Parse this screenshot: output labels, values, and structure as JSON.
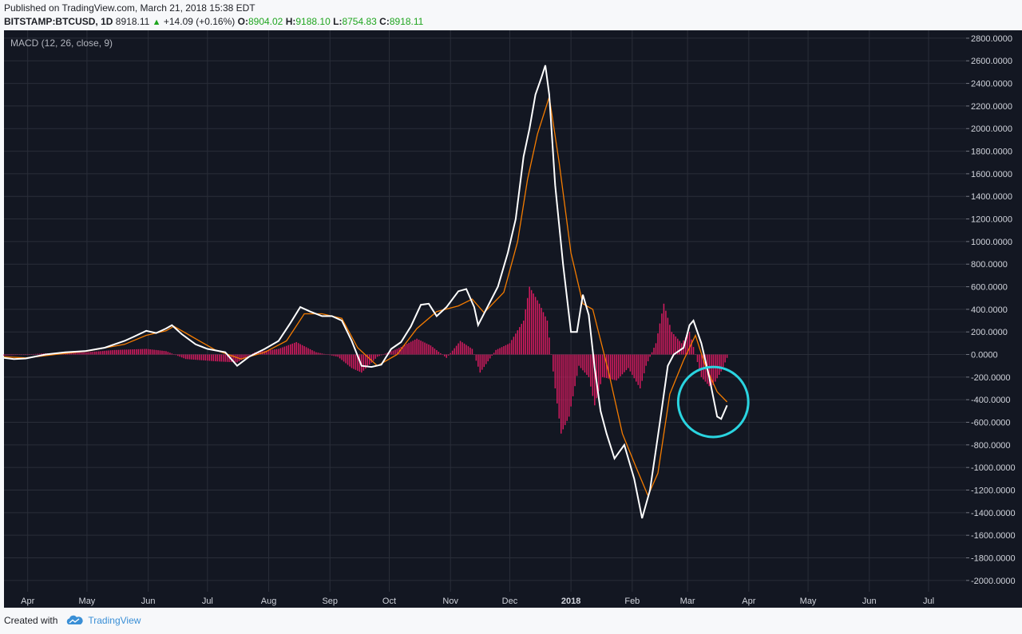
{
  "header": {
    "published": "Published on TradingView.com, March 21, 2018 15:38 EDT",
    "symbol": "BITSTAMP:BTCUSD, 1D",
    "last": "8918.11",
    "change": "+14.09 (+0.16%)",
    "open_label": "O:",
    "open": "8904.02",
    "high_label": "H:",
    "high": "9188.10",
    "low_label": "L:",
    "low": "8754.83",
    "close_label": "C:",
    "close": "8918.11"
  },
  "footer": {
    "created_with": "Created with",
    "brand": "TradingView",
    "logo_icon": "tradingview-cloud-icon"
  },
  "colors": {
    "background": "#131722",
    "grid": "#2a2e39",
    "macd": "#ffffff",
    "signal": "#f57c00",
    "histogram": "#d81b60",
    "annotation": "#2ad4e0",
    "up": "#1fa51f"
  },
  "chart_data": {
    "type": "line",
    "indicator_label": "MACD (12, 26, close, 9)",
    "x_ticks": [
      "Apr",
      "May",
      "Jun",
      "Jul",
      "Aug",
      "Sep",
      "Oct",
      "Nov",
      "Dec",
      "2018",
      "Feb",
      "Mar",
      "Apr",
      "May",
      "Jun",
      "Jul"
    ],
    "x_tick_dates": [
      "2017-04-01",
      "2017-05-01",
      "2017-06-01",
      "2017-07-01",
      "2017-08-01",
      "2017-09-01",
      "2017-10-01",
      "2017-11-01",
      "2017-12-01",
      "2018-01-01",
      "2018-02-01",
      "2018-03-01",
      "2018-04-01",
      "2018-05-01",
      "2018-06-01",
      "2018-07-01"
    ],
    "x_range": [
      "2017-03-20",
      "2018-07-20"
    ],
    "y_ticks": [
      2800,
      2600,
      2400,
      2200,
      2000,
      1800,
      1600,
      1400,
      1200,
      1000,
      800,
      600,
      400,
      200,
      0,
      -200,
      -400,
      -600,
      -800,
      -1000,
      -1200,
      -1400,
      -1600,
      -1800,
      -2000
    ],
    "y_range": [
      -2100,
      2870
    ],
    "y_tick_format": "4 decimals",
    "grid": true,
    "annotation": {
      "type": "circle",
      "center_date": "2018-03-14",
      "center_value": -420,
      "radius_value": 310
    },
    "series": [
      {
        "key": "macd",
        "points": [
          [
            "2017-03-20",
            -30
          ],
          [
            "2017-03-25",
            -40
          ],
          [
            "2017-03-31",
            -35
          ],
          [
            "2017-04-10",
            0
          ],
          [
            "2017-04-20",
            20
          ],
          [
            "2017-04-30",
            30
          ],
          [
            "2017-05-10",
            60
          ],
          [
            "2017-05-20",
            120
          ],
          [
            "2017-05-25",
            160
          ],
          [
            "2017-05-31",
            210
          ],
          [
            "2017-06-05",
            190
          ],
          [
            "2017-06-10",
            230
          ],
          [
            "2017-06-13",
            260
          ],
          [
            "2017-06-18",
            180
          ],
          [
            "2017-06-25",
            90
          ],
          [
            "2017-07-01",
            50
          ],
          [
            "2017-07-10",
            20
          ],
          [
            "2017-07-16",
            -100
          ],
          [
            "2017-07-22",
            -20
          ],
          [
            "2017-07-30",
            50
          ],
          [
            "2017-08-06",
            120
          ],
          [
            "2017-08-12",
            280
          ],
          [
            "2017-08-17",
            420
          ],
          [
            "2017-08-22",
            380
          ],
          [
            "2017-08-28",
            340
          ],
          [
            "2017-09-02",
            340
          ],
          [
            "2017-09-07",
            300
          ],
          [
            "2017-09-12",
            120
          ],
          [
            "2017-09-17",
            -100
          ],
          [
            "2017-09-22",
            -110
          ],
          [
            "2017-09-27",
            -90
          ],
          [
            "2017-10-02",
            50
          ],
          [
            "2017-10-07",
            110
          ],
          [
            "2017-10-12",
            250
          ],
          [
            "2017-10-17",
            440
          ],
          [
            "2017-10-21",
            450
          ],
          [
            "2017-10-25",
            340
          ],
          [
            "2017-10-30",
            420
          ],
          [
            "2017-11-05",
            560
          ],
          [
            "2017-11-09",
            580
          ],
          [
            "2017-11-13",
            420
          ],
          [
            "2017-11-15",
            260
          ],
          [
            "2017-11-20",
            430
          ],
          [
            "2017-11-25",
            600
          ],
          [
            "2017-11-30",
            900
          ],
          [
            "2017-12-04",
            1200
          ],
          [
            "2017-12-08",
            1750
          ],
          [
            "2017-12-11",
            2000
          ],
          [
            "2017-12-14",
            2300
          ],
          [
            "2017-12-17",
            2450
          ],
          [
            "2017-12-19",
            2560
          ],
          [
            "2017-12-21",
            2300
          ],
          [
            "2017-12-24",
            1500
          ],
          [
            "2017-12-28",
            800
          ],
          [
            "2018-01-01",
            200
          ],
          [
            "2018-01-04",
            200
          ],
          [
            "2018-01-07",
            530
          ],
          [
            "2018-01-10",
            350
          ],
          [
            "2018-01-13",
            -120
          ],
          [
            "2018-01-16",
            -500
          ],
          [
            "2018-01-19",
            -700
          ],
          [
            "2018-01-23",
            -920
          ],
          [
            "2018-01-28",
            -800
          ],
          [
            "2018-02-02",
            -1100
          ],
          [
            "2018-02-06",
            -1450
          ],
          [
            "2018-02-10",
            -1200
          ],
          [
            "2018-02-15",
            -600
          ],
          [
            "2018-02-19",
            -100
          ],
          [
            "2018-02-22",
            0
          ],
          [
            "2018-02-27",
            60
          ],
          [
            "2018-03-02",
            260
          ],
          [
            "2018-03-04",
            300
          ],
          [
            "2018-03-08",
            100
          ],
          [
            "2018-03-12",
            -200
          ],
          [
            "2018-03-16",
            -550
          ],
          [
            "2018-03-18",
            -570
          ],
          [
            "2018-03-21",
            -450
          ]
        ]
      },
      {
        "key": "signal",
        "points": [
          [
            "2017-03-20",
            -20
          ],
          [
            "2017-03-31",
            -30
          ],
          [
            "2017-04-15",
            0
          ],
          [
            "2017-05-01",
            30
          ],
          [
            "2017-05-20",
            90
          ],
          [
            "2017-05-31",
            170
          ],
          [
            "2017-06-10",
            210
          ],
          [
            "2017-06-14",
            250
          ],
          [
            "2017-06-22",
            170
          ],
          [
            "2017-07-05",
            40
          ],
          [
            "2017-07-18",
            -40
          ],
          [
            "2017-07-30",
            20
          ],
          [
            "2017-08-10",
            120
          ],
          [
            "2017-08-19",
            360
          ],
          [
            "2017-08-28",
            360
          ],
          [
            "2017-09-07",
            320
          ],
          [
            "2017-09-15",
            60
          ],
          [
            "2017-09-25",
            -100
          ],
          [
            "2017-10-05",
            0
          ],
          [
            "2017-10-15",
            230
          ],
          [
            "2017-10-25",
            380
          ],
          [
            "2017-11-05",
            430
          ],
          [
            "2017-11-12",
            490
          ],
          [
            "2017-11-18",
            370
          ],
          [
            "2017-11-28",
            550
          ],
          [
            "2017-12-05",
            1000
          ],
          [
            "2017-12-10",
            1550
          ],
          [
            "2017-12-15",
            1950
          ],
          [
            "2017-12-21",
            2280
          ],
          [
            "2017-12-26",
            1700
          ],
          [
            "2018-01-01",
            900
          ],
          [
            "2018-01-07",
            450
          ],
          [
            "2018-01-12",
            400
          ],
          [
            "2018-01-20",
            -150
          ],
          [
            "2018-01-27",
            -700
          ],
          [
            "2018-02-03",
            -1000
          ],
          [
            "2018-02-09",
            -1250
          ],
          [
            "2018-02-14",
            -1050
          ],
          [
            "2018-02-20",
            -350
          ],
          [
            "2018-02-27",
            -50
          ],
          [
            "2018-03-05",
            170
          ],
          [
            "2018-03-10",
            -100
          ],
          [
            "2018-03-16",
            -330
          ],
          [
            "2018-03-21",
            -420
          ]
        ]
      },
      {
        "key": "histogram",
        "points": [
          [
            "2017-03-20",
            -10
          ],
          [
            "2017-04-10",
            10
          ],
          [
            "2017-05-01",
            20
          ],
          [
            "2017-05-15",
            40
          ],
          [
            "2017-05-31",
            50
          ],
          [
            "2017-06-10",
            30
          ],
          [
            "2017-06-20",
            -40
          ],
          [
            "2017-07-05",
            -60
          ],
          [
            "2017-07-16",
            -70
          ],
          [
            "2017-07-25",
            20
          ],
          [
            "2017-08-06",
            50
          ],
          [
            "2017-08-15",
            110
          ],
          [
            "2017-08-25",
            20
          ],
          [
            "2017-09-05",
            -20
          ],
          [
            "2017-09-12",
            -120
          ],
          [
            "2017-09-17",
            -160
          ],
          [
            "2017-09-25",
            -20
          ],
          [
            "2017-10-05",
            50
          ],
          [
            "2017-10-15",
            140
          ],
          [
            "2017-10-22",
            80
          ],
          [
            "2017-10-30",
            -30
          ],
          [
            "2017-11-06",
            120
          ],
          [
            "2017-11-12",
            50
          ],
          [
            "2017-11-16",
            -160
          ],
          [
            "2017-11-24",
            40
          ],
          [
            "2017-12-01",
            100
          ],
          [
            "2017-12-08",
            300
          ],
          [
            "2017-12-11",
            600
          ],
          [
            "2017-12-16",
            450
          ],
          [
            "2017-12-20",
            300
          ],
          [
            "2017-12-24",
            -300
          ],
          [
            "2017-12-27",
            -700
          ],
          [
            "2017-12-31",
            -550
          ],
          [
            "2018-01-05",
            -100
          ],
          [
            "2018-01-10",
            -200
          ],
          [
            "2018-01-13",
            -450
          ],
          [
            "2018-01-17",
            -200
          ],
          [
            "2018-01-24",
            -230
          ],
          [
            "2018-01-30",
            -120
          ],
          [
            "2018-02-05",
            -300
          ],
          [
            "2018-02-08",
            -100
          ],
          [
            "2018-02-13",
            100
          ],
          [
            "2018-02-17",
            450
          ],
          [
            "2018-02-21",
            200
          ],
          [
            "2018-02-26",
            100
          ],
          [
            "2018-03-02",
            200
          ],
          [
            "2018-03-08",
            -200
          ],
          [
            "2018-03-13",
            -300
          ],
          [
            "2018-03-18",
            -150
          ],
          [
            "2018-03-21",
            -30
          ]
        ]
      }
    ]
  }
}
